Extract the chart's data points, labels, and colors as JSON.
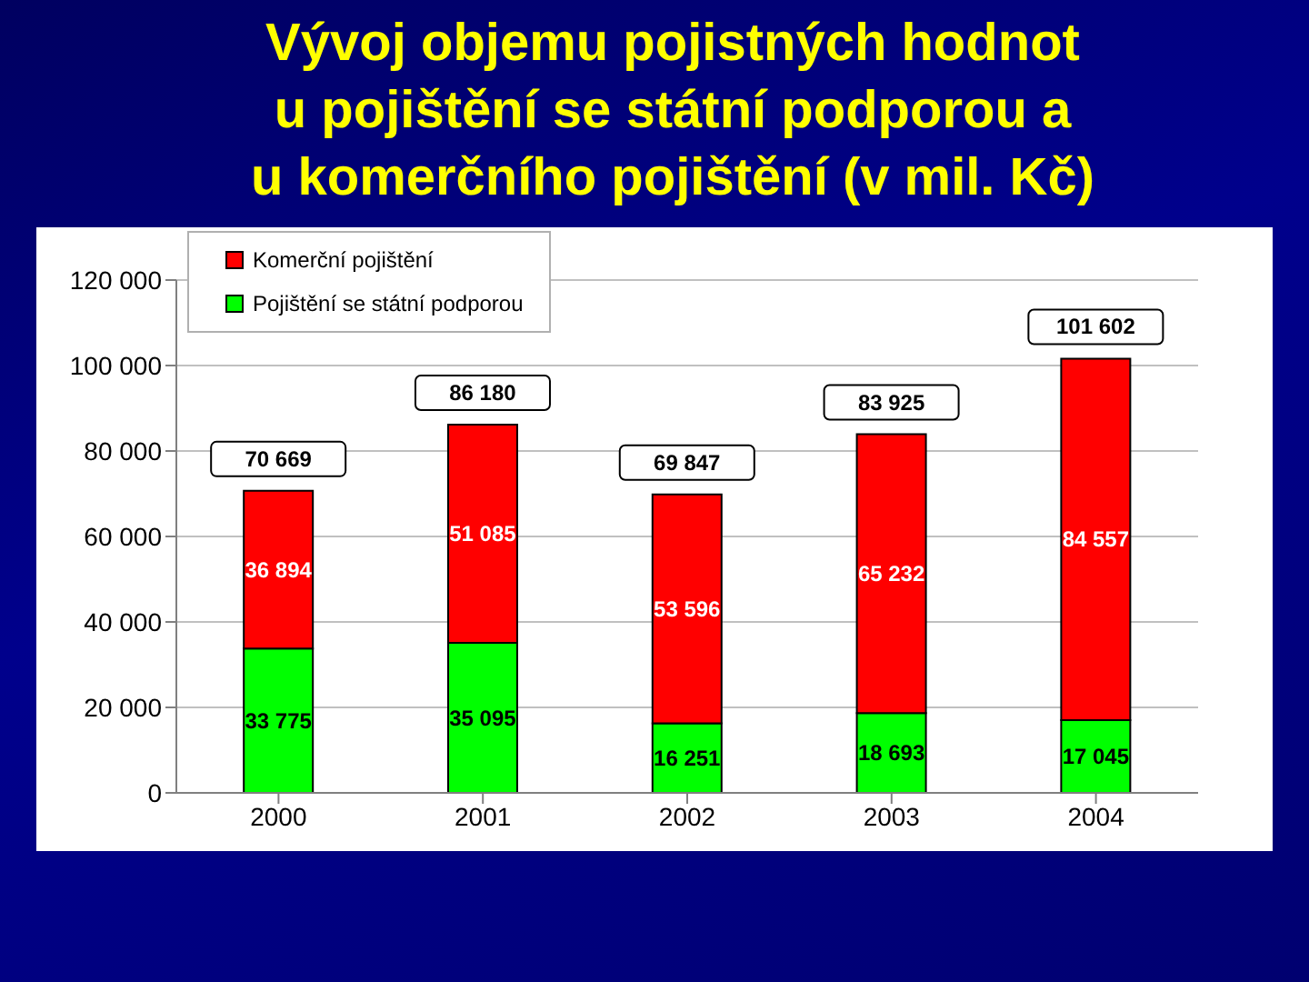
{
  "chart_data": {
    "type": "bar",
    "title": "Vývoj objemu pojistných hodnot\nu pojištění se státní podporou a\nu komerčního pojištění (v mil. Kč)",
    "categories": [
      "2000",
      "2001",
      "2002",
      "2003",
      "2004"
    ],
    "series": [
      {
        "name": "Pojištění se státní podporou",
        "color": "#00ff00",
        "values": [
          33775,
          35095,
          16251,
          18693,
          17045
        ],
        "value_labels": [
          "33 775",
          "35 095",
          "16 251",
          "18 693",
          "17 045"
        ]
      },
      {
        "name": "Komerční pojištění",
        "color": "#ff0000",
        "values": [
          36894,
          51085,
          53596,
          65232,
          84557
        ],
        "value_labels": [
          "36 894",
          "51 085",
          "53 596",
          "65 232",
          "84 557"
        ]
      }
    ],
    "stacked": true,
    "totals": [
      "70 669",
      "86 180",
      "69 847",
      "83 925",
      "101 602"
    ],
    "ylim": [
      0,
      120000
    ],
    "yticks": [
      0,
      {
        "value": 20000,
        "label": "20 000"
      },
      {
        "value": 40000,
        "label": "40 000"
      },
      {
        "value": 60000,
        "label": "60 000"
      },
      {
        "value": 80000,
        "label": "80 000"
      },
      {
        "value": 100000,
        "label": "100 000"
      },
      {
        "value": 120000,
        "label": "120 000"
      }
    ],
    "grid": "y",
    "legend": "top left"
  }
}
